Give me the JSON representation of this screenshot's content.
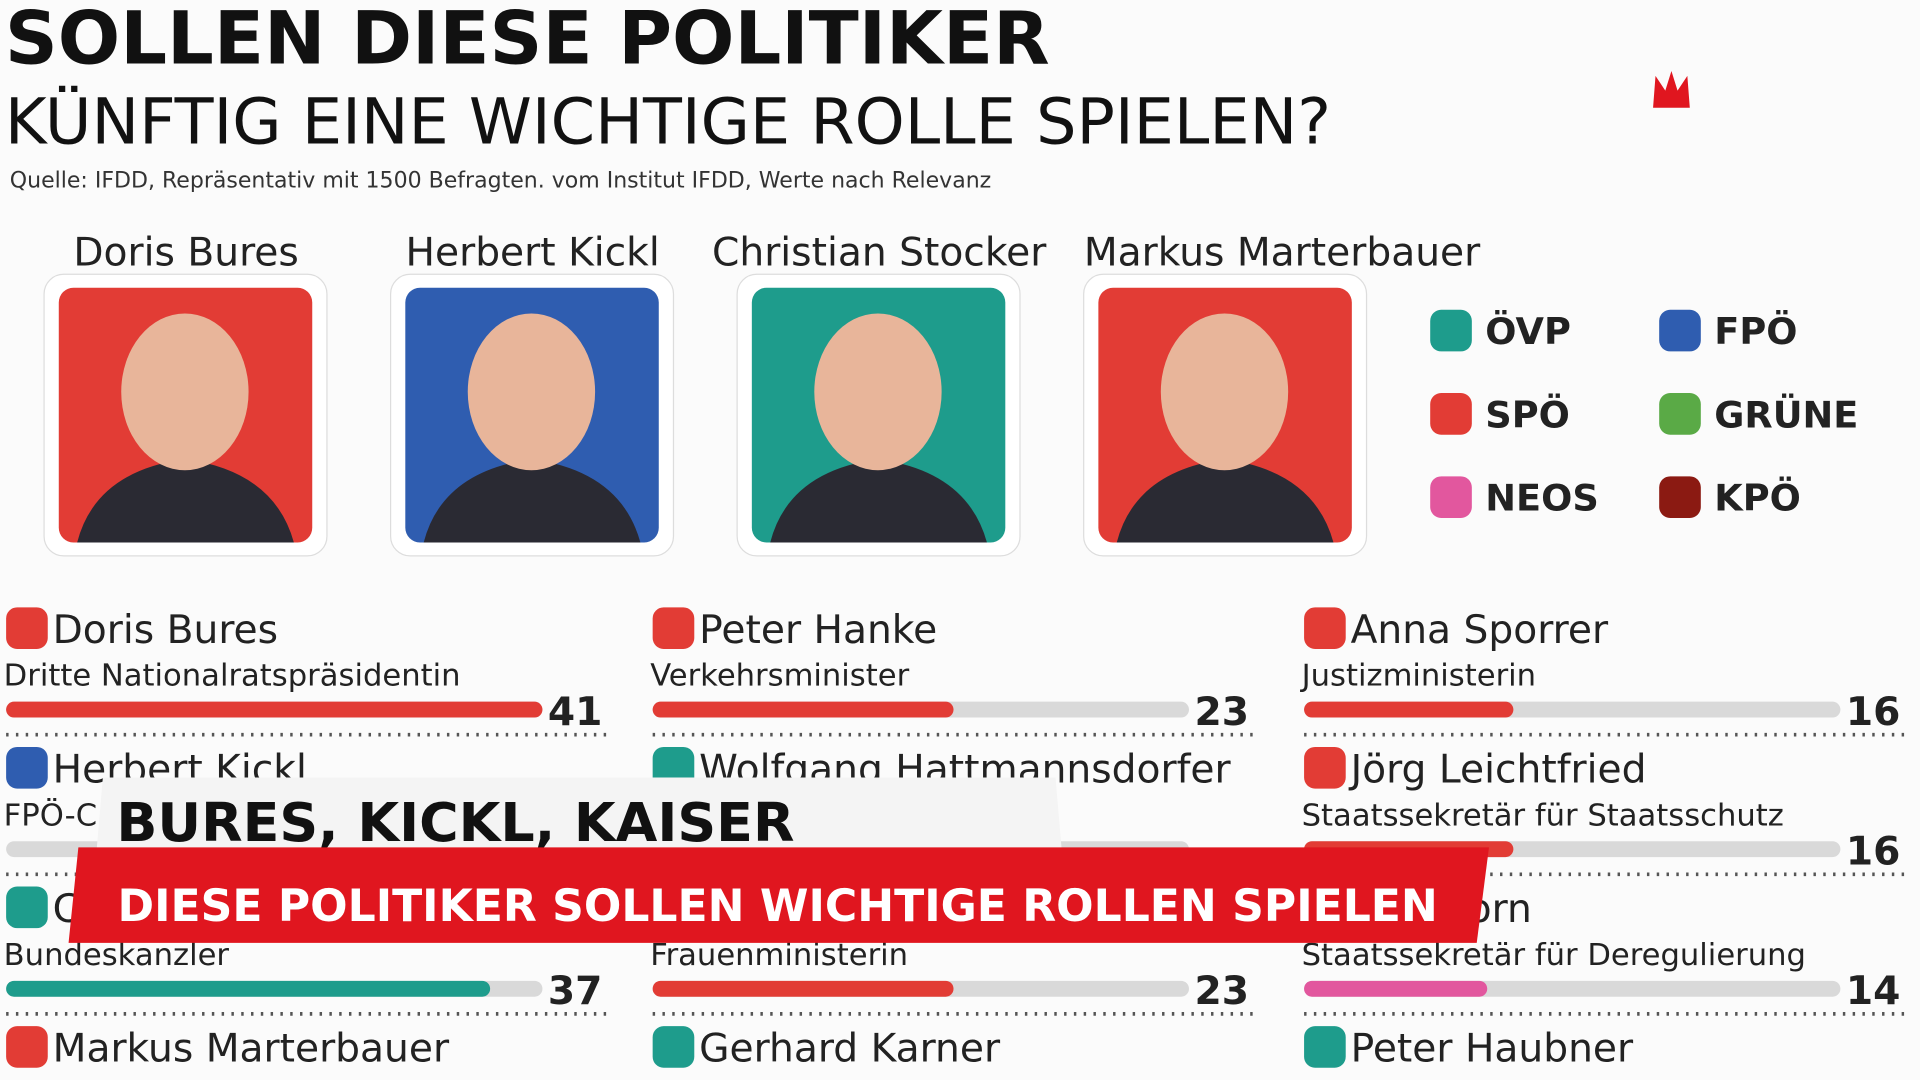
{
  "header": {
    "title": "SOLLEN DIESE POLITIKER",
    "subtitle": "KÜNFTIG EINE WICHTIGE ROLLE SPIELEN?",
    "source": "Quelle: IFDD, Repräsentativ mit 1500 Befragten. vom Institut IFDD, Werte nach Relevanz"
  },
  "portraits": [
    {
      "name": "Doris Bures",
      "color": "#e23c35"
    },
    {
      "name": "Herbert Kickl",
      "color": "#2f5db0"
    },
    {
      "name": "Christian Stocker",
      "color": "#1e9c8c"
    },
    {
      "name": "Markus Marterbauer",
      "color": "#e23c35"
    }
  ],
  "legend": [
    {
      "name": "ÖVP",
      "color": "#1e9c8c"
    },
    {
      "name": "FPÖ",
      "color": "#2f5db0"
    },
    {
      "name": "SPÖ",
      "color": "#e23c35"
    },
    {
      "name": "GRÜNE",
      "color": "#5aaa46"
    },
    {
      "name": "NEOS",
      "color": "#e2579e"
    },
    {
      "name": "KPÖ",
      "color": "#8b1a12"
    }
  ],
  "columns": [
    [
      {
        "name": "Doris Bures",
        "role": "Dritte Nationalratspräsidentin",
        "value": 41,
        "color": "#e23c35"
      },
      {
        "name": "Herbert Kickl",
        "role": "FPÖ-C",
        "color": "#2f5db0"
      },
      {
        "name": "C",
        "role": "Bundeskanzler",
        "value": 37,
        "color": "#1e9c8c"
      },
      {
        "name": "Markus Marterbauer",
        "color": "#e23c35"
      }
    ],
    [
      {
        "name": "Peter Hanke",
        "role": "Verkehrsminister",
        "value": 23,
        "color": "#e23c35"
      },
      {
        "name": "Wolfgang Hattmannsdorfer",
        "color": "#1e9c8c"
      },
      {
        "role": "Frauenministerin",
        "value": 23,
        "color": "#e23c35"
      },
      {
        "name": "Gerhard Karner",
        "color": "#1e9c8c"
      }
    ],
    [
      {
        "name": "Anna Sporrer",
        "role": "Justizministerin",
        "value": 16,
        "color": "#e23c35"
      },
      {
        "name": "Jörg Leichtfried",
        "role": "Staatssekretär für Staatsschutz",
        "value": 16,
        "color": "#e23c35"
      },
      {
        "name": "chellhorn",
        "role": "Staatssekretär für Deregulierung",
        "value": 14,
        "color": "#e2579e"
      },
      {
        "name": "Peter Haubner",
        "color": "#1e9c8c"
      }
    ]
  ],
  "banner": {
    "headline": "BURES, KICKL, KAISER",
    "subline": "DIESE POLITIKER SOLLEN WICHTIGE ROLLEN SPIELEN"
  }
}
